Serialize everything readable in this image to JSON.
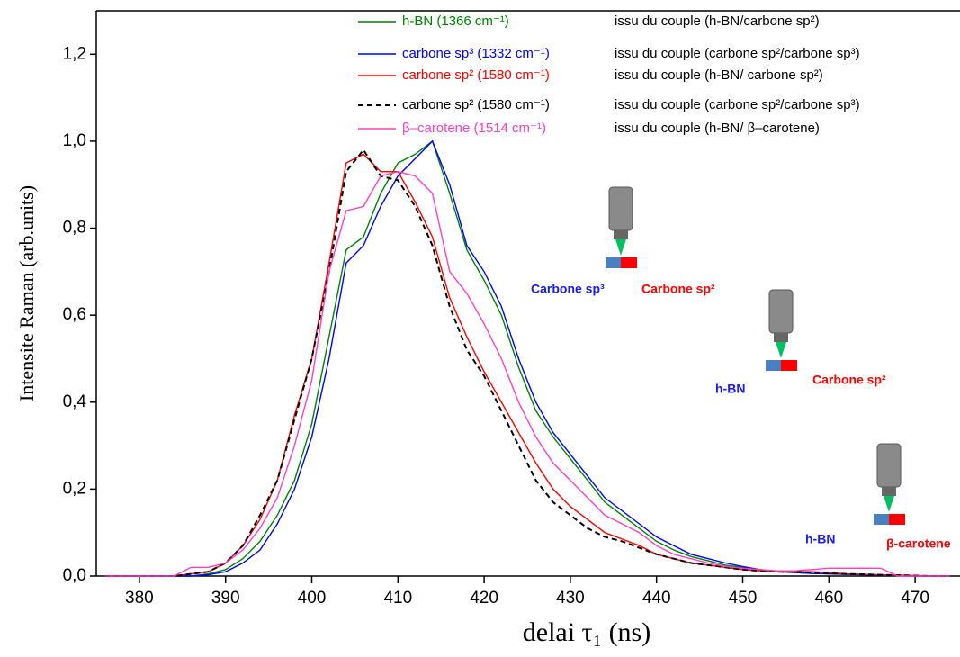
{
  "chart_data": {
    "type": "line",
    "y_label": "Intensite Raman (arb.units)",
    "x_label": "delai τ₁ (ns)",
    "xlim": [
      375,
      475
    ],
    "ylim": [
      0,
      1.3
    ],
    "xticks": [
      380,
      390,
      400,
      410,
      420,
      430,
      440,
      450,
      460,
      470
    ],
    "yticks": [
      {
        "value": 0,
        "label": "0,0"
      },
      {
        "value": 0.2,
        "label": "0,2"
      },
      {
        "value": 0.4,
        "label": "0,4"
      },
      {
        "value": 0.6,
        "label": "0,6"
      },
      {
        "value": 0.8,
        "label": "0,8"
      },
      {
        "value": 1.0,
        "label": "1,0"
      },
      {
        "value": 1.2,
        "label": "1,2"
      }
    ],
    "x": [
      376,
      378,
      380,
      382,
      384,
      386,
      388,
      390,
      392,
      394,
      396,
      398,
      400,
      402,
      404,
      406,
      408,
      410,
      412,
      414,
      416,
      418,
      420,
      422,
      424,
      426,
      428,
      430,
      432,
      434,
      436,
      438,
      440,
      442,
      444,
      446,
      448,
      450,
      452,
      454,
      456,
      458,
      460,
      462,
      464,
      466,
      468,
      470,
      472,
      474
    ],
    "series": [
      {
        "name": "h-BN (1366 cm⁻¹)",
        "note": "issu du couple (h-BN/carbone sp²)",
        "color": "#008000",
        "dash": false,
        "values": [
          0,
          0,
          0,
          0,
          0,
          0,
          0.005,
          0.015,
          0.04,
          0.08,
          0.14,
          0.22,
          0.35,
          0.55,
          0.75,
          0.78,
          0.88,
          0.95,
          0.97,
          1.0,
          0.88,
          0.75,
          0.68,
          0.6,
          0.48,
          0.38,
          0.32,
          0.27,
          0.22,
          0.17,
          0.14,
          0.11,
          0.08,
          0.06,
          0.045,
          0.035,
          0.025,
          0.02,
          0.015,
          0.01,
          0.008,
          0.006,
          0.005,
          0.004,
          0.003,
          0.002,
          0.001,
          0,
          0,
          0
        ]
      },
      {
        "name": "carbone sp³ (1332 cm⁻¹)",
        "note": "issu du couple (carbone sp²/carbone sp³)",
        "color": "#0000ff",
        "dash": false,
        "values": [
          0,
          0,
          0,
          0,
          0,
          0,
          0.003,
          0.01,
          0.03,
          0.06,
          0.12,
          0.2,
          0.32,
          0.5,
          0.72,
          0.76,
          0.85,
          0.92,
          0.96,
          1.0,
          0.9,
          0.76,
          0.7,
          0.62,
          0.5,
          0.4,
          0.33,
          0.28,
          0.23,
          0.18,
          0.15,
          0.12,
          0.09,
          0.07,
          0.05,
          0.04,
          0.03,
          0.022,
          0.015,
          0.01,
          0.008,
          0.006,
          0.005,
          0.004,
          0.003,
          0.002,
          0.001,
          0,
          0,
          0
        ]
      },
      {
        "name": "carbone sp² (1580 cm⁻¹)",
        "note": "issu du couple (h-BN/ carbone sp²)",
        "color": "#ff0000",
        "dash": false,
        "values": [
          0,
          0,
          0,
          0,
          0,
          0.005,
          0.01,
          0.03,
          0.07,
          0.13,
          0.22,
          0.37,
          0.5,
          0.72,
          0.95,
          0.97,
          0.93,
          0.93,
          0.86,
          0.78,
          0.64,
          0.55,
          0.47,
          0.4,
          0.33,
          0.26,
          0.2,
          0.16,
          0.13,
          0.1,
          0.085,
          0.07,
          0.05,
          0.04,
          0.03,
          0.025,
          0.02,
          0.015,
          0.012,
          0.01,
          0.01,
          0.01,
          0.008,
          0.005,
          0.004,
          0.003,
          0.002,
          0.001,
          0,
          0
        ]
      },
      {
        "name": "carbone sp² (1580 cm⁻¹)",
        "note": "issu du couple (carbone sp²/carbone sp³)",
        "color": "#000000",
        "dash": true,
        "values": [
          0,
          0,
          0,
          0,
          0,
          0.005,
          0.01,
          0.03,
          0.07,
          0.14,
          0.22,
          0.36,
          0.5,
          0.7,
          0.93,
          0.98,
          0.92,
          0.91,
          0.85,
          0.76,
          0.62,
          0.52,
          0.46,
          0.38,
          0.3,
          0.22,
          0.17,
          0.14,
          0.11,
          0.09,
          0.08,
          0.065,
          0.05,
          0.04,
          0.03,
          0.025,
          0.02,
          0.015,
          0.012,
          0.01,
          0.01,
          0.008,
          0.006,
          0.005,
          0.004,
          0.003,
          0.002,
          0.001,
          0,
          0
        ]
      },
      {
        "name": "β–carotene (1514 cm⁻¹)",
        "note": "issu du couple (h-BN/ β–carotene)",
        "color": "#ff40c0",
        "dash": false,
        "values": [
          0,
          0,
          0,
          0,
          0,
          0.02,
          0.02,
          0.03,
          0.06,
          0.11,
          0.18,
          0.3,
          0.45,
          0.7,
          0.84,
          0.85,
          0.92,
          0.93,
          0.92,
          0.88,
          0.7,
          0.65,
          0.58,
          0.5,
          0.4,
          0.32,
          0.26,
          0.22,
          0.18,
          0.14,
          0.12,
          0.1,
          0.07,
          0.05,
          0.04,
          0.03,
          0.022,
          0.018,
          0.015,
          0.012,
          0.012,
          0.015,
          0.018,
          0.018,
          0.018,
          0.018,
          0,
          0,
          0,
          0
        ]
      }
    ],
    "annotations": [
      {
        "text": "Carbone sp³",
        "color": "#1a1aff"
      },
      {
        "text": "Carbone sp²",
        "color": "#ff0000"
      },
      {
        "text": "h-BN",
        "color": "#1a1aff"
      },
      {
        "text": "Carbone sp²",
        "color": "#ff0000"
      },
      {
        "text": "h-BN",
        "color": "#1a1aff"
      },
      {
        "text": "β-carotene",
        "color": "#ff0000"
      }
    ]
  }
}
